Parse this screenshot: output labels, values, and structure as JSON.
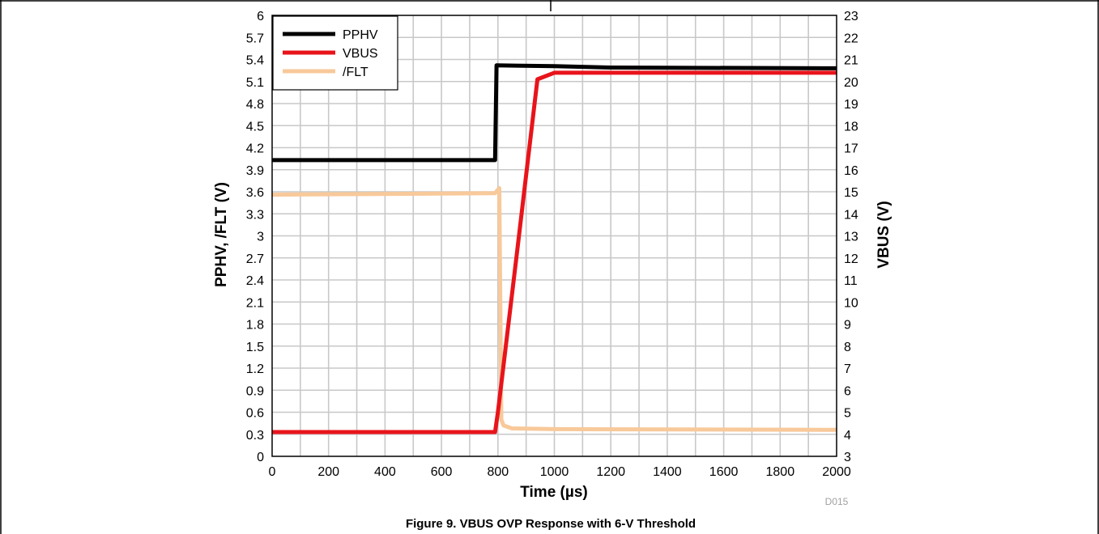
{
  "chart_data": {
    "type": "line",
    "title": "",
    "xlabel": "Time (µs)",
    "ylabel_left": "PPHV, /FLT (V)",
    "ylabel_right": "VBUS (V)",
    "xlim": [
      0,
      2000
    ],
    "ylim_left": [
      0,
      6
    ],
    "ylim_right": [
      3,
      23
    ],
    "x_ticks": [
      0,
      200,
      400,
      600,
      800,
      1000,
      1200,
      1400,
      1600,
      1800,
      2000
    ],
    "y_ticks_left": [
      "0",
      "0.3",
      "0.6",
      "0.9",
      "1.2",
      "1.5",
      "1.8",
      "2.1",
      "2.4",
      "2.7",
      "3",
      "3.3",
      "3.6",
      "3.9",
      "4.2",
      "4.5",
      "4.8",
      "5.1",
      "5.4",
      "5.7",
      "6"
    ],
    "y_ticks_right": [
      "3",
      "4",
      "5",
      "6",
      "7",
      "8",
      "9",
      "10",
      "11",
      "12",
      "13",
      "14",
      "15",
      "16",
      "17",
      "18",
      "19",
      "20",
      "21",
      "22",
      "23"
    ],
    "grid": true,
    "legend_position": "top-left",
    "series": [
      {
        "name": "PPHV",
        "axis": "left",
        "color": "#000000",
        "x": [
          0,
          790,
          795,
          1000,
          1200,
          2000
        ],
        "y": [
          4.03,
          4.03,
          5.32,
          5.31,
          5.29,
          5.28
        ]
      },
      {
        "name": "VBUS",
        "axis": "right",
        "color": "#e8141b",
        "x": [
          0,
          790,
          800,
          870,
          940,
          1000,
          2000
        ],
        "y": [
          4.1,
          4.1,
          5.0,
          12.5,
          20.1,
          20.4,
          20.4
        ]
      },
      {
        "name": "/FLT",
        "axis": "left",
        "color": "#f8c99a",
        "x": [
          0,
          790,
          805,
          812,
          820,
          850,
          1000,
          2000
        ],
        "y": [
          3.56,
          3.58,
          3.65,
          0.5,
          0.42,
          0.38,
          0.37,
          0.36
        ]
      }
    ]
  },
  "figure_id": "D015",
  "caption": "Figure 9. VBUS OVP Response with 6-V Threshold"
}
